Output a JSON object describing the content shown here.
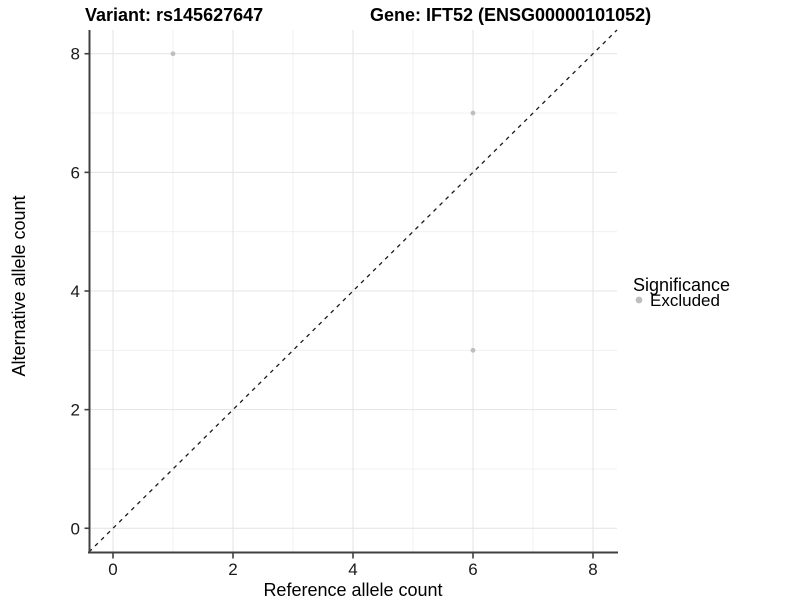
{
  "chart_data": {
    "type": "scatter",
    "title_left": "Variant: rs145627647",
    "title_right": "Gene: IFT52 (ENSG00000101052)",
    "xlabel": "Reference allele count",
    "ylabel": "Alternative allele count",
    "xlim": [
      -0.4,
      8.4
    ],
    "ylim": [
      -0.4,
      8.4
    ],
    "xticks": [
      0,
      2,
      4,
      6,
      8
    ],
    "yticks": [
      0,
      2,
      4,
      6,
      8
    ],
    "minor_xgrid": [
      1,
      3,
      5,
      7
    ],
    "minor_ygrid": [
      1,
      3,
      5,
      7
    ],
    "grid": "on",
    "series": [
      {
        "name": "Excluded",
        "marker": "circle",
        "color": "#bebebe",
        "points": [
          {
            "x": 1,
            "y": 8
          },
          {
            "x": 6,
            "y": 7
          },
          {
            "x": 6,
            "y": 3
          }
        ]
      }
    ],
    "reference_line": {
      "kind": "identity",
      "equation": "y = x",
      "style": "dashed",
      "color": "#1a1a1a"
    },
    "legend": {
      "title": "Significance",
      "position": "right-center",
      "entries": [
        {
          "label": "Excluded",
          "marker": "circle",
          "color": "#bebebe"
        }
      ]
    },
    "colors": {
      "background": "#ffffff",
      "grid_major": "#e3e3e3",
      "grid_minor": "#f0f0f0",
      "axis_line": "#404040",
      "point": "#bebebe",
      "text": "#000000"
    }
  }
}
